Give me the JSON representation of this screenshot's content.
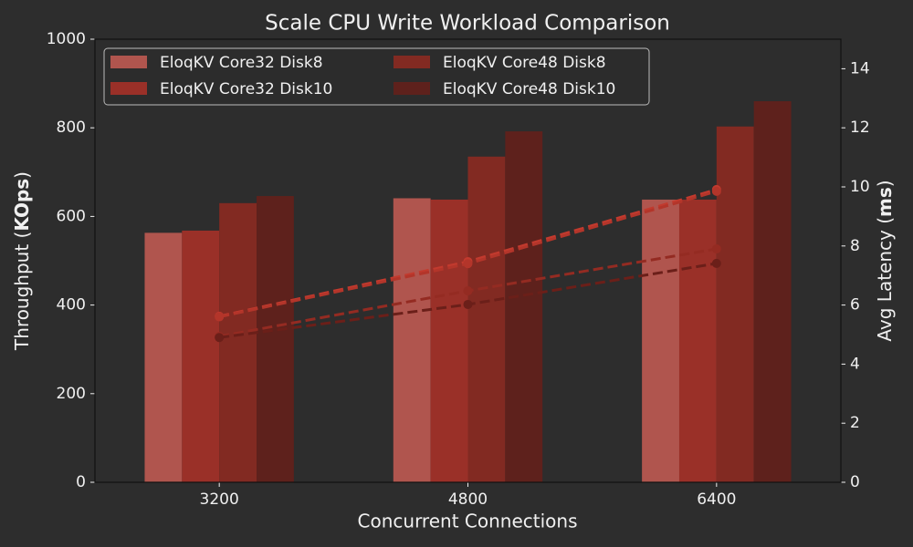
{
  "chart_data": {
    "type": "bar_line",
    "title": "Scale CPU Write Workload Comparison",
    "x_label": "Concurrent Connections",
    "y_label_parts": [
      "Throughput (",
      "KOps",
      ")"
    ],
    "y2_label_parts": [
      "Avg Latency (",
      "ms",
      ")"
    ],
    "categories": [
      "3200",
      "4800",
      "6400"
    ],
    "series": [
      {
        "name": "EloqKV Core32 Disk8",
        "color": "#b0554e",
        "line_color": "#c23a2e",
        "values": [
          563,
          641,
          638
        ],
        "latency": [
          5.62,
          7.47,
          9.91
        ]
      },
      {
        "name": "EloqKV Core32 Disk10",
        "color": "#9a3028",
        "line_color": "#b3352a",
        "values": [
          568,
          638,
          638
        ],
        "latency": [
          5.6,
          7.4,
          9.85
        ]
      },
      {
        "name": "EloqKV Core48 Disk8",
        "color": "#822a22",
        "line_color": "#942b22",
        "values": [
          630,
          735,
          803
        ],
        "latency": [
          4.94,
          6.48,
          7.9
        ]
      },
      {
        "name": "EloqKV Core48 Disk10",
        "color": "#5e211c",
        "line_color": "#6b1f19",
        "values": [
          646,
          792,
          860
        ],
        "latency": [
          4.9,
          6.02,
          7.41
        ]
      }
    ],
    "ylim": [
      0,
      1000
    ],
    "yticks": [
      0,
      200,
      400,
      600,
      800,
      1000
    ],
    "y2lim": [
      0,
      15
    ],
    "y2ticks": [
      0,
      2,
      4,
      6,
      8,
      10,
      12,
      14
    ],
    "legend": "upper-left",
    "legend_columns": 2
  }
}
